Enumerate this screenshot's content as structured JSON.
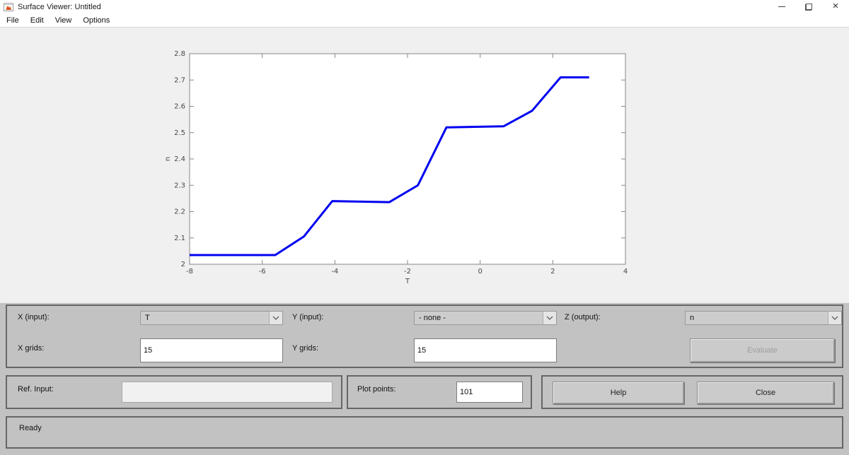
{
  "window": {
    "title": "Surface Viewer: Untitled",
    "app_icon": "matlab-icon",
    "buttons": [
      "minimize",
      "restore",
      "close"
    ],
    "close_glyph": "×"
  },
  "menu": {
    "items": [
      "File",
      "Edit",
      "View",
      "Options"
    ]
  },
  "chart_data": {
    "type": "line",
    "title": "",
    "xlabel": "T",
    "ylabel": "n",
    "xlim": [
      -8,
      4
    ],
    "ylim": [
      2,
      2.8
    ],
    "xticks": [
      -8,
      -6,
      -4,
      -2,
      0,
      2,
      4
    ],
    "yticks": [
      2,
      2.1,
      2.2,
      2.3,
      2.4,
      2.5,
      2.6,
      2.7,
      2.8
    ],
    "grid": false,
    "box": true,
    "axis_color": "#878787",
    "plot_bg": "#ffffff",
    "series": [
      {
        "name": "output-surface-curve",
        "color": "#0000f0",
        "x": [
          -8,
          -7.214,
          -6.429,
          -5.643,
          -4.857,
          -4.071,
          -3.286,
          -2.5,
          -1.714,
          -0.929,
          -0.143,
          0.643,
          1.429,
          2.214,
          3.0
        ],
        "y": [
          2.035,
          2.035,
          2.035,
          2.035,
          2.105,
          2.24,
          2.238,
          2.236,
          2.3,
          2.52,
          2.522,
          2.524,
          2.583,
          2.71,
          2.71
        ]
      }
    ]
  },
  "controls": {
    "x_input": {
      "label": "X (input):",
      "value": "T"
    },
    "y_input": {
      "label": "Y (input):",
      "value": "- none -"
    },
    "z_output": {
      "label": "Z (output):",
      "value": "n"
    },
    "x_grids": {
      "label": "X grids:",
      "value": "15"
    },
    "y_grids": {
      "label": "Y grids:",
      "value": "15"
    },
    "evaluate_label": "Evaluate",
    "evaluate_enabled": false,
    "ref_input": {
      "label": "Ref. Input:",
      "value": "",
      "enabled": false
    },
    "plot_points": {
      "label": "Plot points:",
      "value": "101"
    },
    "help_label": "Help",
    "close_label": "Close",
    "status": "Ready"
  }
}
